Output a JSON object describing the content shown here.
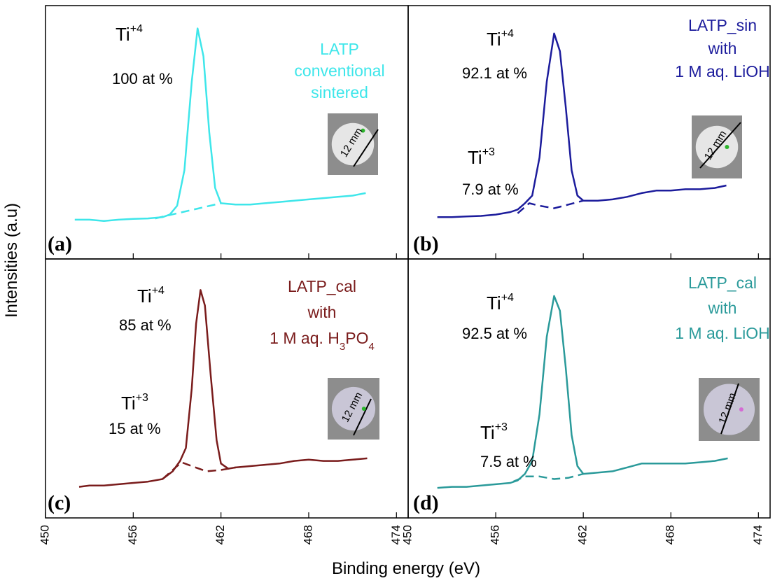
{
  "figure": {
    "ylabel": "Intensities (a.u)",
    "xlabel": "Binding energy (eV)"
  },
  "chart_data": [
    {
      "type": "line",
      "panel_label": "(a)",
      "xlim": [
        450,
        474.8
      ],
      "ylim": [
        0,
        100
      ],
      "xticks": [
        450,
        456,
        462,
        468,
        474
      ],
      "peak_labels": [
        {
          "species": "Ti",
          "charge": "+4",
          "fraction": "100 at %"
        }
      ],
      "sample_label": [
        [
          "LATP"
        ],
        [
          "conventional"
        ],
        [
          "sintered"
        ]
      ],
      "sample_color": "#3ee6ea",
      "inset_label": "12 mm",
      "series": [
        {
          "color": "#3ee6ea",
          "style": "solid",
          "x": [
            452,
            453,
            454,
            455,
            456,
            457,
            458,
            458.5,
            459,
            459.5,
            460,
            460.4,
            460.8,
            461.2,
            461.6,
            462,
            463,
            464,
            465,
            466,
            467,
            468,
            469,
            470,
            471,
            471.9
          ],
          "values": [
            15.5,
            15.5,
            15,
            15.5,
            15.8,
            16,
            16.5,
            17.5,
            21,
            35,
            70,
            91,
            80,
            50,
            28,
            22,
            21.5,
            21.5,
            22,
            22.5,
            23,
            23.5,
            24,
            24.5,
            25,
            26
          ]
        },
        {
          "color": "#3ee6ea",
          "style": "dashed",
          "x": [
            457.5,
            459,
            460.5,
            462
          ],
          "values": [
            16,
            18,
            20,
            22
          ]
        }
      ]
    },
    {
      "type": "line",
      "panel_label": "(b)",
      "xlim": [
        450,
        474.8
      ],
      "ylim": [
        0,
        100
      ],
      "xticks": [
        450,
        456,
        462,
        468,
        474
      ],
      "peak_labels": [
        {
          "species": "Ti",
          "charge": "+4",
          "fraction": "92.1 at %"
        },
        {
          "species": "Ti",
          "charge": "+3",
          "fraction": "7.9 at %"
        }
      ],
      "sample_label": [
        [
          "LATP_sin"
        ],
        [
          "with"
        ],
        [
          "1 M aq. LiOH"
        ]
      ],
      "sample_color": "#1c1c9c",
      "inset_label": "12 mm",
      "series": [
        {
          "color": "#1c1c9c",
          "style": "solid",
          "x": [
            452,
            453,
            454,
            455,
            456,
            457,
            457.5,
            458,
            458.5,
            459,
            459.5,
            460,
            460.4,
            460.8,
            461.2,
            461.6,
            462,
            463,
            464,
            465,
            466,
            467,
            468,
            469,
            470,
            471,
            471.8
          ],
          "values": [
            16.5,
            16.5,
            16.8,
            17,
            17.5,
            18.5,
            19.5,
            22,
            25,
            40,
            70,
            89,
            82,
            60,
            35,
            25,
            23,
            23,
            23.5,
            24.5,
            26,
            27,
            27,
            27.5,
            27.5,
            28,
            29
          ]
        },
        {
          "color": "#1c1c9c",
          "style": "dashed",
          "x": [
            457.5,
            458.3,
            459,
            460,
            461,
            462
          ],
          "values": [
            18,
            22,
            21,
            20,
            21.5,
            23
          ]
        }
      ]
    },
    {
      "type": "line",
      "panel_label": "(c)",
      "xlim": [
        450,
        474.8
      ],
      "ylim": [
        0,
        100
      ],
      "xticks": [
        450,
        456,
        462,
        468,
        474
      ],
      "peak_labels": [
        {
          "species": "Ti",
          "charge": "+4",
          "fraction": "85 at %"
        },
        {
          "species": "Ti",
          "charge": "+3",
          "fraction": "15 at %"
        }
      ],
      "sample_label": [
        [
          "LATP_cal"
        ],
        [
          "with"
        ],
        [
          "1 M aq. H",
          {
            "sub": "3"
          },
          "PO",
          {
            "sub": "4"
          }
        ]
      ],
      "sample_color": "#7a1c1c",
      "inset_label": "12 mm",
      "series": [
        {
          "color": "#7a1c1c",
          "style": "solid",
          "x": [
            452.3,
            453,
            454,
            455,
            456,
            457,
            458,
            458.7,
            459.2,
            459.6,
            460,
            460.3,
            460.6,
            460.9,
            461.3,
            461.7,
            462,
            462.5,
            463,
            464,
            465,
            466,
            467,
            468,
            469,
            470,
            471,
            472
          ],
          "values": [
            12,
            12.5,
            12.5,
            13,
            13.5,
            14,
            15,
            18,
            22,
            27,
            50,
            75,
            88,
            82,
            55,
            30,
            21,
            19,
            19.5,
            20,
            20.5,
            21,
            22,
            22.5,
            22,
            22,
            22.5,
            23
          ]
        },
        {
          "color": "#7a1c1c",
          "style": "dashed",
          "x": [
            458,
            458.7,
            459.3,
            460,
            461,
            462,
            463
          ],
          "values": [
            15,
            18.5,
            21.5,
            20,
            18,
            18.5,
            19.5
          ]
        }
      ]
    },
    {
      "type": "line",
      "panel_label": "(d)",
      "xlim": [
        450,
        474.8
      ],
      "ylim": [
        0,
        100
      ],
      "xticks": [
        450,
        456,
        462,
        468,
        474
      ],
      "peak_labels": [
        {
          "species": "Ti",
          "charge": "+4",
          "fraction": "92.5 at %"
        },
        {
          "species": "Ti",
          "charge": "+3",
          "fraction": "7.5 at %"
        }
      ],
      "sample_label": [
        [
          "LATP_cal"
        ],
        [
          "with"
        ],
        [
          "1 M aq. LiOH"
        ]
      ],
      "sample_color": "#2a9a9a",
      "inset_label": "12 mm",
      "series": [
        {
          "color": "#2a9a9a",
          "style": "solid",
          "x": [
            452,
            453,
            454,
            455,
            456,
            457,
            457.5,
            458,
            458.5,
            459,
            459.5,
            460,
            460.4,
            460.8,
            461.2,
            461.6,
            462,
            463,
            464,
            465,
            466,
            467,
            468,
            469,
            470,
            471,
            471.9
          ],
          "values": [
            11.6,
            12,
            12,
            12.5,
            13,
            13.5,
            14.5,
            17,
            22,
            40,
            70,
            85.7,
            80,
            58,
            32,
            20,
            17,
            17.5,
            18,
            19.5,
            21,
            21,
            21,
            21,
            21.5,
            22,
            23
          ]
        },
        {
          "color": "#2a9a9a",
          "style": "dashed",
          "x": [
            457.2,
            458,
            459,
            460,
            461,
            462
          ],
          "values": [
            14,
            16,
            16,
            15,
            15.5,
            17
          ]
        }
      ]
    }
  ]
}
